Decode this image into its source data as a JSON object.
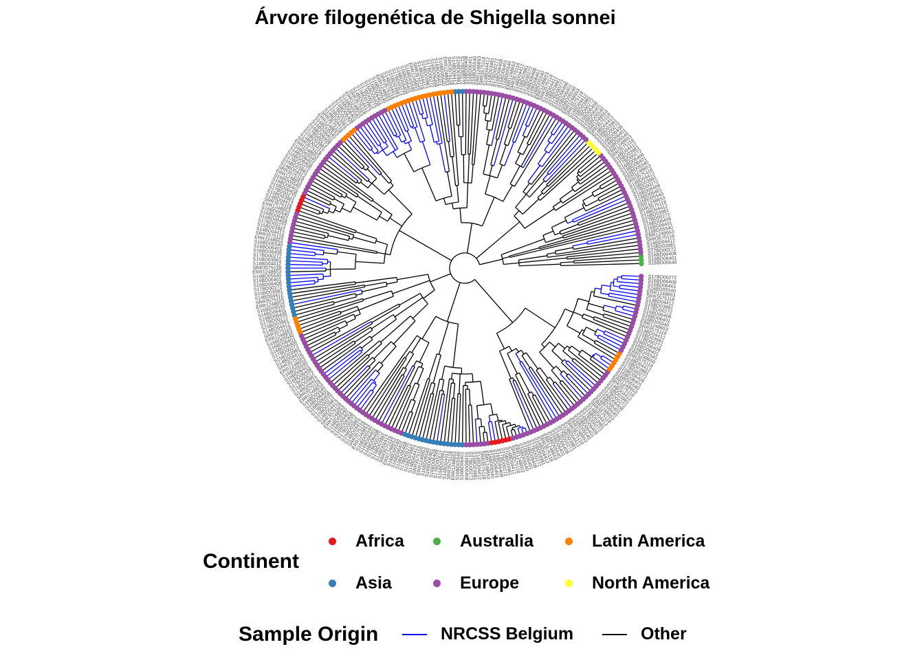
{
  "chart_data": {
    "type": "circular-phylogenetic-tree",
    "title": "Árvore filogenética de Shigella sonnei",
    "legend": {
      "continent": {
        "title": "Continent",
        "items": [
          {
            "label": "Africa",
            "color": "#E41A1C"
          },
          {
            "label": "Australia",
            "color": "#4DAF4A"
          },
          {
            "label": "Latin America",
            "color": "#FF7F00"
          },
          {
            "label": "Asia",
            "color": "#377EB8"
          },
          {
            "label": "Europe",
            "color": "#984EA3"
          },
          {
            "label": "North America",
            "color": "#FFFF33"
          }
        ]
      },
      "sample_origin": {
        "title": "Sample Origin",
        "items": [
          {
            "label": "NRCSS Belgium",
            "color": "#0000FF"
          },
          {
            "label": "Other",
            "color": "#000000"
          }
        ]
      }
    },
    "tip_labels": [
      "S16BD05540",
      "S16BD06401",
      "S16BD06408",
      "S17BD00272"
    ],
    "tip_sectors": [
      {
        "start": 0,
        "end": 4,
        "continent": "Australia"
      },
      {
        "start": 4,
        "end": 40,
        "continent": "Europe"
      },
      {
        "start": 40,
        "end": 46,
        "continent": "North America"
      },
      {
        "start": 46,
        "end": 90,
        "continent": "Europe"
      },
      {
        "start": 90,
        "end": 94,
        "continent": "Asia"
      },
      {
        "start": 94,
        "end": 100,
        "continent": "Latin America"
      },
      {
        "start": 100,
        "end": 116,
        "continent": "Latin America"
      },
      {
        "start": 116,
        "end": 128,
        "continent": "Europe"
      },
      {
        "start": 128,
        "end": 134,
        "continent": "Latin America"
      },
      {
        "start": 134,
        "end": 156,
        "continent": "Europe"
      },
      {
        "start": 156,
        "end": 162,
        "continent": "Africa"
      },
      {
        "start": 162,
        "end": 172,
        "continent": "Europe"
      },
      {
        "start": 172,
        "end": 196,
        "continent": "Asia"
      },
      {
        "start": 196,
        "end": 202,
        "continent": "Latin America"
      },
      {
        "start": 202,
        "end": 250,
        "continent": "Europe"
      },
      {
        "start": 250,
        "end": 270,
        "continent": "Asia"
      },
      {
        "start": 270,
        "end": 278,
        "continent": "Europe"
      },
      {
        "start": 278,
        "end": 285,
        "continent": "Africa"
      },
      {
        "start": 285,
        "end": 325,
        "continent": "Europe"
      },
      {
        "start": 325,
        "end": 332,
        "continent": "Latin America"
      },
      {
        "start": 332,
        "end": 360,
        "continent": "Europe"
      }
    ]
  }
}
